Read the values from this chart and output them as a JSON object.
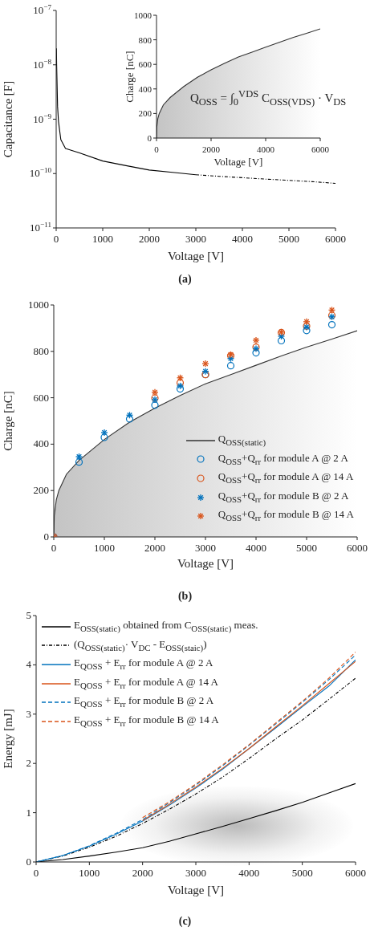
{
  "chart_data": [
    {
      "type": "line",
      "xlabel": "Voltage [V]",
      "ylabel": "Capacitance [F]",
      "log": "y",
      "xlim": [
        0,
        6000
      ],
      "xticks": [
        0,
        1000,
        2000,
        3000,
        4000,
        5000,
        6000
      ],
      "ylim": [
        1e-11,
        1e-07
      ],
      "yticks": [
        {
          "value": 1e-11,
          "label": "10$^{−11}$"
        },
        {
          "value": 1e-10,
          "label": "10$^{−10}$"
        },
        {
          "value": 1e-09,
          "label": "10$^{−9}$"
        },
        {
          "value": 1e-08,
          "label": "10$^{−8}$"
        },
        {
          "value": 1e-07,
          "label": "10$^{−7}$"
        }
      ],
      "grid": false,
      "legend": false,
      "annotations": [
        "(a)"
      ],
      "x": [
        5,
        10,
        30,
        50,
        100,
        200,
        500,
        1000,
        1500,
        2000,
        2500,
        3000,
        3500,
        4000,
        4500,
        5000,
        5500,
        6000
      ],
      "series": [
        {
          "color": "#000000",
          "line_style": "solid",
          "values": [
            2e-08,
            1e-08,
            1.7e-09,
            9e-10,
            4.2e-10,
            2.9e-10,
            2.4e-10,
            1.7e-10,
            1.4e-10,
            1.16e-10,
            1.05e-10,
            9.5e-11,
            null,
            null,
            null,
            null,
            null,
            null
          ]
        },
        {
          "color": "#000000",
          "line_style": "dotted",
          "values": [
            null,
            null,
            null,
            null,
            null,
            null,
            null,
            null,
            null,
            null,
            null,
            9.5e-11,
            8.9e-11,
            8.4e-11,
            7.9e-11,
            7.5e-11,
            7.1e-11,
            6.6e-11
          ]
        }
      ]
    },
    {
      "type": "area",
      "xlabel": "Voltage [V]",
      "ylabel": "Charge [nC]",
      "xlim": [
        0,
        6000
      ],
      "xticks": [
        0,
        2000,
        4000,
        6000
      ],
      "ylim": [
        0,
        1000
      ],
      "yticks": [
        0,
        200,
        400,
        600,
        800,
        1000
      ],
      "grid": false,
      "legend": false,
      "annotations": [
        "Q$_{OSS}$ = ∫$_{0}$$^{VDS}$ C$_{OSS(VDS)}$ · V$_{DS}$"
      ],
      "x": [
        0,
        10,
        50,
        100,
        250,
        500,
        1000,
        1500,
        2000,
        2500,
        3000,
        3500,
        4000,
        4500,
        5000,
        5500,
        6000
      ],
      "series": [
        {
          "color": "#333333",
          "values": [
            0,
            90,
            160,
            200,
            270,
            330,
            420,
            495,
            555,
            610,
            660,
            700,
            740,
            780,
            818,
            853,
            889
          ]
        }
      ]
    },
    {
      "type": "scatter",
      "xlabel": "Voltage [V]",
      "ylabel": "Charge [nC]",
      "xlim": [
        0,
        6000
      ],
      "xticks": [
        0,
        1000,
        2000,
        3000,
        4000,
        5000,
        6000
      ],
      "ylim": [
        0,
        1000
      ],
      "yticks": [
        0,
        200,
        400,
        600,
        800,
        1000
      ],
      "grid": false,
      "legend": "bottom right",
      "annotations": [
        "(b)"
      ],
      "x": [
        0,
        500,
        1000,
        1500,
        2000,
        2500,
        3000,
        3500,
        4000,
        4500,
        5000,
        5500
      ],
      "series": [
        {
          "type": "area",
          "name": "Q$_{OSS(static)}$",
          "color": "#333333",
          "x": [
            0,
            10,
            50,
            100,
            250,
            500,
            1000,
            1500,
            2000,
            2500,
            3000,
            3500,
            4000,
            4500,
            5000,
            5500,
            6000
          ],
          "values": [
            0,
            90,
            160,
            200,
            270,
            330,
            420,
            495,
            555,
            610,
            660,
            700,
            740,
            780,
            818,
            853,
            889
          ]
        },
        {
          "name": "Q$_{OSS}$+Q$_{rr}$ for module A @ 2 A",
          "color": "#0072bd",
          "marker": "circle",
          "values": [
            0,
            323,
            429,
            509,
            568,
            638,
            700,
            738,
            794,
            846,
            890,
            915
          ]
        },
        {
          "name": "Q$_{OSS}$+Q$_{rr}$ for module A @ 14 A",
          "color": "#d95319",
          "marker": "circle",
          "values": [
            0,
            null,
            null,
            null,
            599,
            664,
            700,
            781,
            818,
            881,
            909,
            955
          ]
        },
        {
          "name": "Q$_{OSS}$+Q$_{rr}$ for module B @ 2 A",
          "color": "#0072bd",
          "marker": "cross",
          "values": [
            0,
            346,
            450,
            525,
            592,
            651,
            714,
            769,
            811,
            865,
            905,
            949
          ]
        },
        {
          "name": "Q$_{OSS}$+Q$_{rr}$ for module B @ 14 A",
          "color": "#d95319",
          "marker": "cross",
          "values": [
            0,
            null,
            null,
            null,
            624,
            686,
            747,
            786,
            848,
            883,
            928,
            978
          ]
        }
      ]
    },
    {
      "type": "line",
      "xlabel": "Voltage [V]",
      "ylabel": "Energy [mJ]",
      "xlim": [
        0,
        6000
      ],
      "xticks": [
        0,
        1000,
        2000,
        3000,
        4000,
        5000,
        6000
      ],
      "ylim": [
        0,
        5
      ],
      "yticks": [
        0,
        1,
        2,
        3,
        4,
        5
      ],
      "grid": false,
      "legend": "top left",
      "annotations": [
        "(c)"
      ],
      "x": [
        0,
        500,
        1000,
        1500,
        2000,
        2500,
        3000,
        3500,
        4000,
        4500,
        5000,
        5500,
        6000
      ],
      "series": [
        {
          "name": "E$_{OSS(static)}$ obtained from C$_{OSS(static)}$ meas.",
          "color": "#000000",
          "line_style": "solid",
          "values": [
            0,
            0.05,
            0.12,
            0.2,
            0.29,
            0.42,
            0.57,
            0.72,
            0.88,
            1.04,
            1.21,
            1.4,
            1.59
          ]
        },
        {
          "name": "(Q$_{OSS(static)}$· V$_{DC}$ - E$_{OSS(staic)}$)",
          "color": "#000000",
          "line_style": "dotted",
          "values": [
            0,
            0.12,
            0.3,
            0.52,
            0.78,
            1.07,
            1.38,
            1.72,
            2.1,
            2.5,
            2.88,
            3.3,
            3.73
          ]
        },
        {
          "name": "E$_{QOSS}$ + E$_{rr}$ for module A @ 2 A",
          "color": "#0072bd",
          "line_style": "solid",
          "values": [
            0,
            0.13,
            0.32,
            0.56,
            0.83,
            1.15,
            1.5,
            1.88,
            2.3,
            2.72,
            3.15,
            3.57,
            4.1
          ]
        },
        {
          "name": "E$_{QOSS}$ + E$_{rr}$ for module A @ 14 A",
          "color": "#d95319",
          "line_style": "solid",
          "values": [
            null,
            null,
            null,
            null,
            0.84,
            1.17,
            1.52,
            1.9,
            2.3,
            2.74,
            3.17,
            3.62,
            4.07
          ]
        },
        {
          "name": "E$_{QOSS}$ + E$_{rr}$ for module B @ 2 A",
          "color": "#0072bd",
          "line_style": "dashed",
          "values": [
            0,
            0.13,
            0.33,
            0.58,
            0.86,
            1.2,
            1.56,
            1.95,
            2.37,
            2.8,
            3.24,
            3.7,
            4.2
          ]
        },
        {
          "name": "E$_{QOSS}$ + E$_{rr}$ for module B @ 14 A",
          "color": "#d95319",
          "line_style": "dashed",
          "values": [
            null,
            null,
            null,
            null,
            0.9,
            1.22,
            1.58,
            1.97,
            2.38,
            2.82,
            3.26,
            3.73,
            4.26
          ]
        }
      ]
    }
  ]
}
